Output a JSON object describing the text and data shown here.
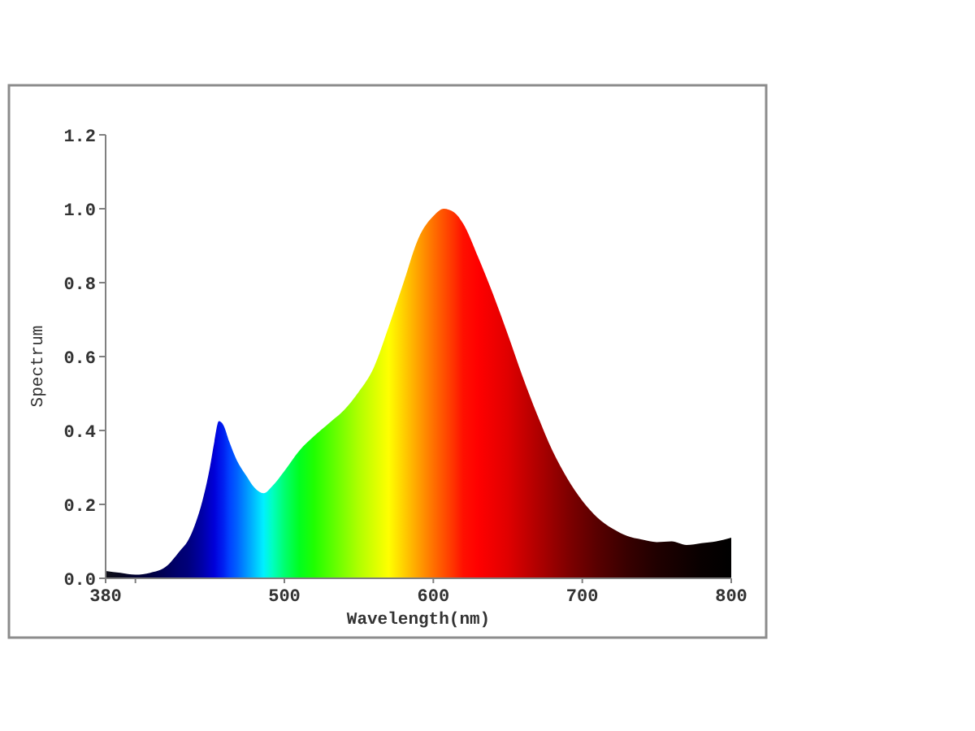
{
  "chart_data": {
    "type": "area",
    "xlabel": "Wavelength(nm)",
    "ylabel": "Spectrum",
    "xlim": [
      380,
      800
    ],
    "ylim": [
      0,
      1.2
    ],
    "xticks": [
      380,
      {
        "value": 400,
        "label": null
      },
      500,
      600,
      700,
      800
    ],
    "yticks": [
      {
        "value": 0,
        "label": "0.0"
      },
      {
        "value": 0.2,
        "label": "0.2"
      },
      {
        "value": 0.4,
        "label": "0.4"
      },
      {
        "value": 0.6,
        "label": "0.6"
      },
      {
        "value": 0.8,
        "label": "0.8"
      },
      {
        "value": 1,
        "label": "1.0"
      },
      {
        "value": 1.2,
        "label": "1.2"
      }
    ],
    "x": [
      380,
      390,
      400,
      410,
      420,
      430,
      435,
      440,
      445,
      450,
      453,
      456,
      459,
      463,
      468,
      474,
      480,
      486,
      492,
      500,
      510,
      520,
      530,
      540,
      550,
      560,
      570,
      580,
      590,
      600,
      607,
      614,
      620,
      630,
      640,
      650,
      660,
      670,
      680,
      690,
      700,
      710,
      720,
      730,
      740,
      750,
      760,
      770,
      780,
      790,
      800
    ],
    "values": [
      0.02,
      0.015,
      0.01,
      0.015,
      0.03,
      0.075,
      0.1,
      0.145,
      0.21,
      0.3,
      0.37,
      0.425,
      0.415,
      0.37,
      0.32,
      0.28,
      0.245,
      0.23,
      0.25,
      0.29,
      0.345,
      0.385,
      0.42,
      0.455,
      0.505,
      0.57,
      0.68,
      0.8,
      0.92,
      0.98,
      1.0,
      0.99,
      0.96,
      0.87,
      0.77,
      0.66,
      0.545,
      0.44,
      0.345,
      0.27,
      0.21,
      0.165,
      0.135,
      0.115,
      0.105,
      0.098,
      0.1,
      0.09,
      0.095,
      0.1,
      0.11
    ],
    "colors": [
      "#101018",
      "#080820",
      "#000030",
      "#000040",
      "#000058",
      "#000070",
      "#00007a",
      "#000090",
      "#0000a8",
      "#0000c8",
      "#0000d8",
      "#0010e8",
      "#0020f0",
      "#0040ff",
      "#0060ff",
      "#0090ff",
      "#00c0ff",
      "#00f0ff",
      "#00ffc0",
      "#00ff70",
      "#00ff20",
      "#20ff00",
      "#50ff00",
      "#80ff00",
      "#b0ff00",
      "#d8ff00",
      "#ffff00",
      "#ffd000",
      "#ffa000",
      "#ff7000",
      "#ff5000",
      "#ff3000",
      "#ff1000",
      "#ff0000",
      "#f00000",
      "#e00000",
      "#c80000",
      "#b00000",
      "#980000",
      "#800000",
      "#6c0000",
      "#580000",
      "#480000",
      "#380000",
      "#2c0000",
      "#200000",
      "#180000",
      "#100000",
      "#080000",
      "#040000",
      "#000000"
    ]
  }
}
